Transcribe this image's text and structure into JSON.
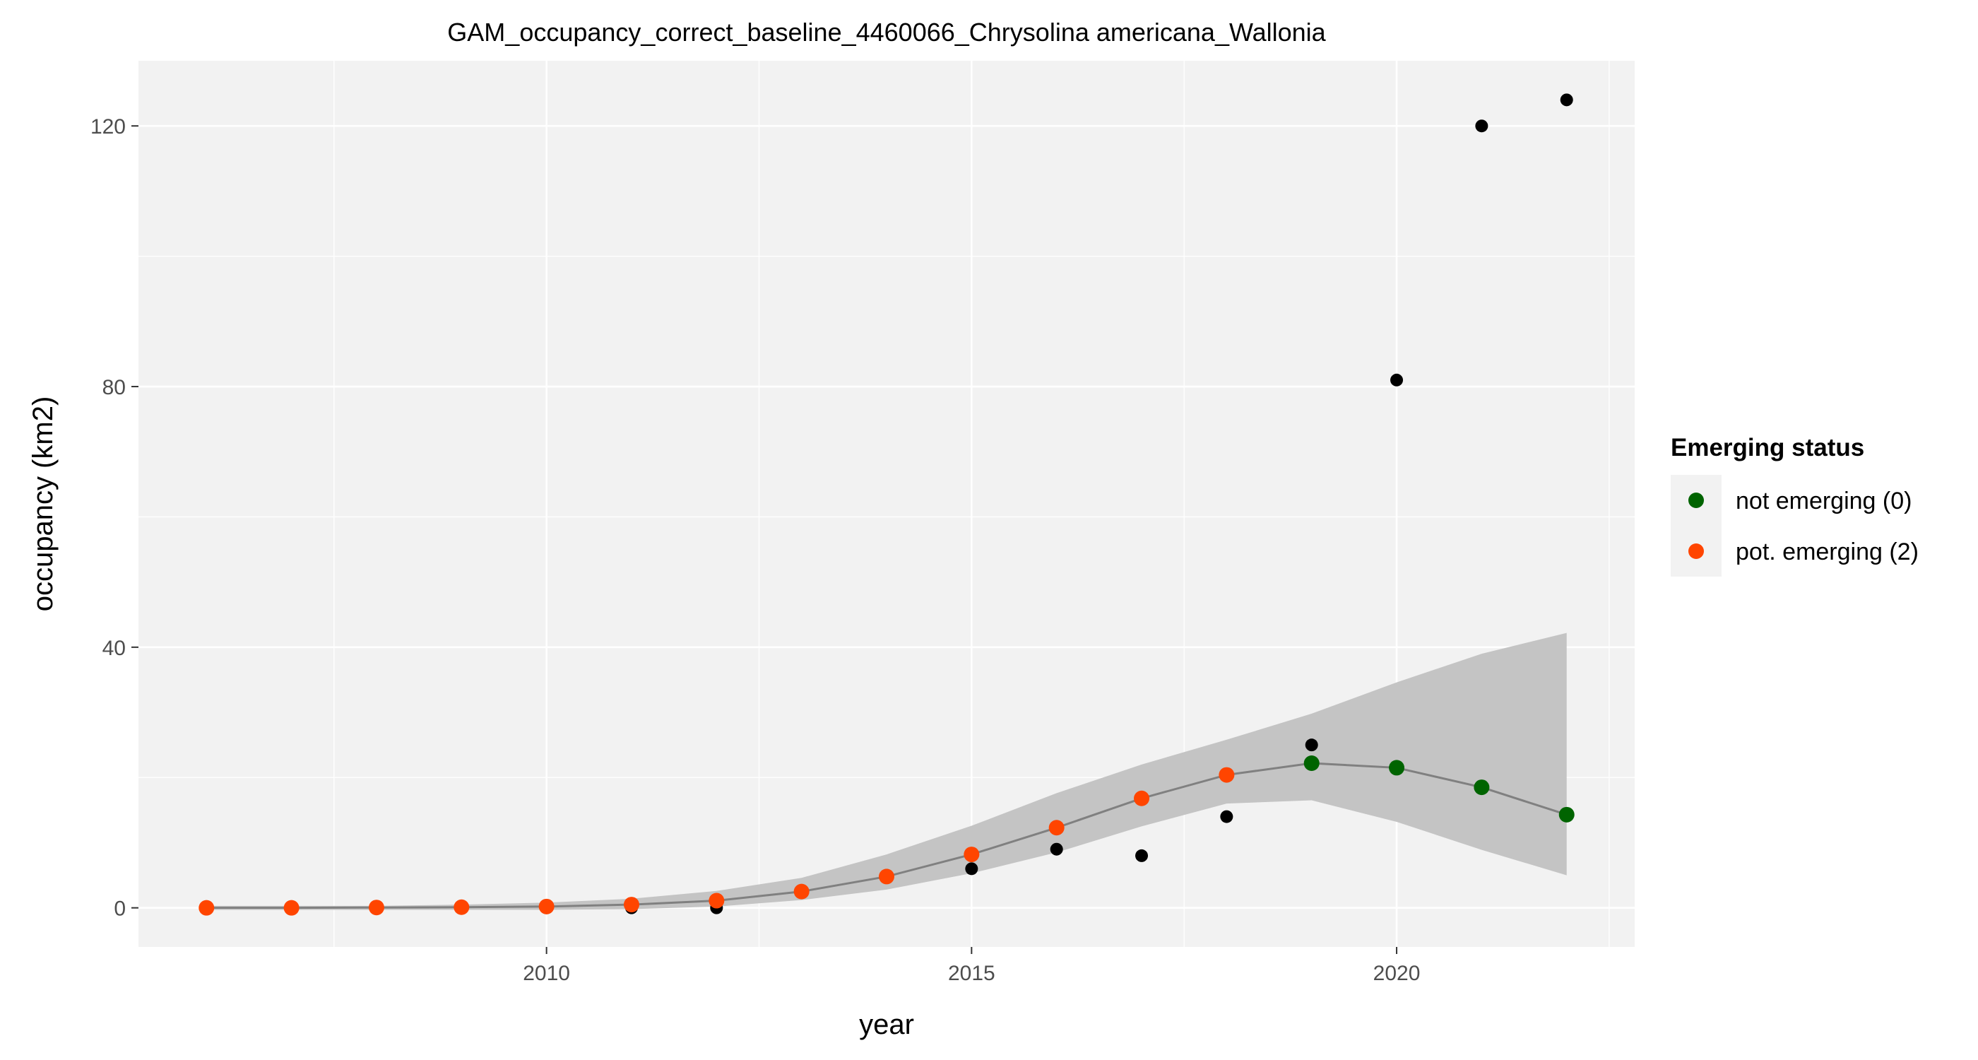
{
  "chart_data": {
    "type": "scatter",
    "title": "GAM_occupancy_correct_baseline_4460066_Chrysolina americana_Wallonia",
    "xlabel": "year",
    "ylabel": "occupancy (km2)",
    "xlim": [
      2005.2,
      2022.8
    ],
    "ylim": [
      -6,
      130
    ],
    "x_ticks": [
      2010,
      2015,
      2020
    ],
    "y_ticks": [
      0,
      40,
      80,
      120
    ],
    "grid": true,
    "legend_position": "right",
    "legend": {
      "title": "Emerging status",
      "items": [
        {
          "label": "not emerging (0)",
          "color": "#006400"
        },
        {
          "label": "pot. emerging (2)",
          "color": "#ff4500"
        }
      ]
    },
    "observed": {
      "color": "#000000",
      "x": [
        2006,
        2007,
        2008,
        2009,
        2010,
        2011,
        2012,
        2013,
        2014,
        2015,
        2016,
        2017,
        2018,
        2019,
        2020,
        2021,
        2022
      ],
      "y": [
        0,
        0,
        0,
        0,
        0,
        0,
        0,
        2.5,
        5,
        6,
        9,
        8,
        14,
        25,
        81,
        120,
        124
      ]
    },
    "fitted": {
      "line_color": "#808080",
      "band_color": "#c4c4c4",
      "x": [
        2006,
        2007,
        2008,
        2009,
        2010,
        2011,
        2012,
        2013,
        2014,
        2015,
        2016,
        2017,
        2018,
        2019,
        2020,
        2021,
        2022
      ],
      "y": [
        0,
        0,
        0.05,
        0.1,
        0.2,
        0.5,
        1.1,
        2.5,
        4.8,
        8.2,
        12.3,
        16.8,
        20.4,
        22.2,
        21.5,
        18.5,
        14.3
      ],
      "lower": [
        -0.3,
        -0.3,
        -0.3,
        -0.3,
        -0.3,
        -0.2,
        0.2,
        1.2,
        2.8,
        5.3,
        8.5,
        12.5,
        16,
        16.5,
        13.2,
        8.9,
        5
      ],
      "upper": [
        0.3,
        0.3,
        0.3,
        0.5,
        0.8,
        1.4,
        2.6,
        4.6,
        8.2,
        12.6,
        17.6,
        22,
        25.8,
        29.8,
        34.6,
        39,
        42.2
      ],
      "status": [
        2,
        2,
        2,
        2,
        2,
        2,
        2,
        2,
        2,
        2,
        2,
        2,
        2,
        0,
        0,
        0,
        0
      ]
    }
  }
}
